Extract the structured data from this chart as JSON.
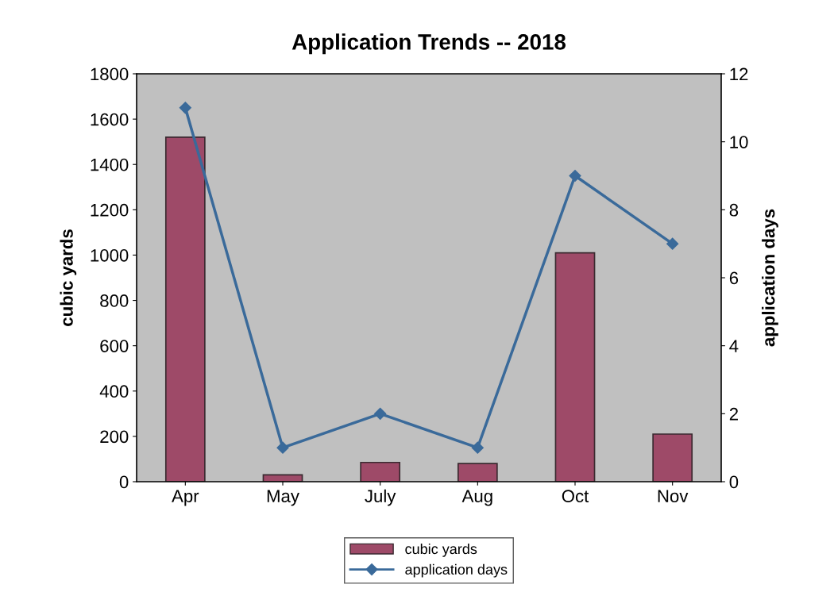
{
  "chart_data": {
    "type": "bar",
    "title": "Application Trends -- 2018",
    "ylabel": "cubic yards",
    "y2label": "application days",
    "categories": [
      "Apr",
      "May",
      "July",
      "Aug",
      "Oct",
      "Nov"
    ],
    "series": [
      {
        "name": "cubic yards",
        "color": "#9e4a68",
        "values": [
          1520,
          30,
          85,
          80,
          1010,
          210
        ]
      },
      {
        "name": "application days",
        "type": "line",
        "axis": "y2",
        "color": "#3a6a9a",
        "marker": "diamond",
        "values": [
          11,
          1,
          2,
          1,
          9,
          7
        ]
      }
    ],
    "ylim": [
      0,
      1800
    ],
    "yticks": [
      0,
      200,
      400,
      600,
      800,
      1000,
      1200,
      1400,
      1600,
      1800
    ],
    "y2lim": [
      0,
      12
    ],
    "y2ticks": [
      0,
      2,
      4,
      6,
      8,
      10,
      12
    ],
    "grid": false,
    "legend": "bottom"
  }
}
